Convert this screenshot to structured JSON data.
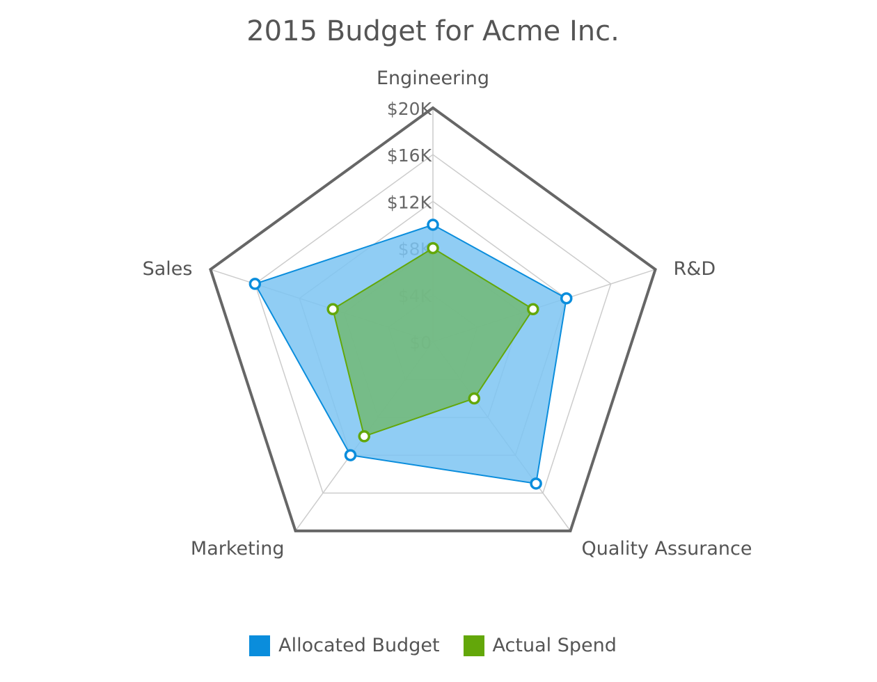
{
  "chart_data": {
    "type": "radar",
    "title": "2015 Budget for Acme Inc.",
    "axes": [
      "Engineering",
      "R&D",
      "Quality Assurance",
      "Marketing",
      "Sales"
    ],
    "axis_tick_labels": [
      "$0",
      "$4K",
      "$8K",
      "$12K",
      "$16K",
      "$20K"
    ],
    "axis_ticks": [
      0,
      4000,
      8000,
      12000,
      16000,
      20000
    ],
    "range": [
      0,
      20000
    ],
    "series": [
      {
        "name": "Allocated Budget",
        "color": "#0a8ddc",
        "fill": "#7cc4f2",
        "values": [
          10000,
          12000,
          15000,
          12000,
          16000
        ]
      },
      {
        "name": "Actual Spend",
        "color": "#63a70a",
        "fill": "#72b874",
        "values": [
          8000,
          9000,
          6000,
          10000,
          9000
        ]
      }
    ],
    "legend_position": "bottom",
    "grid": true
  }
}
